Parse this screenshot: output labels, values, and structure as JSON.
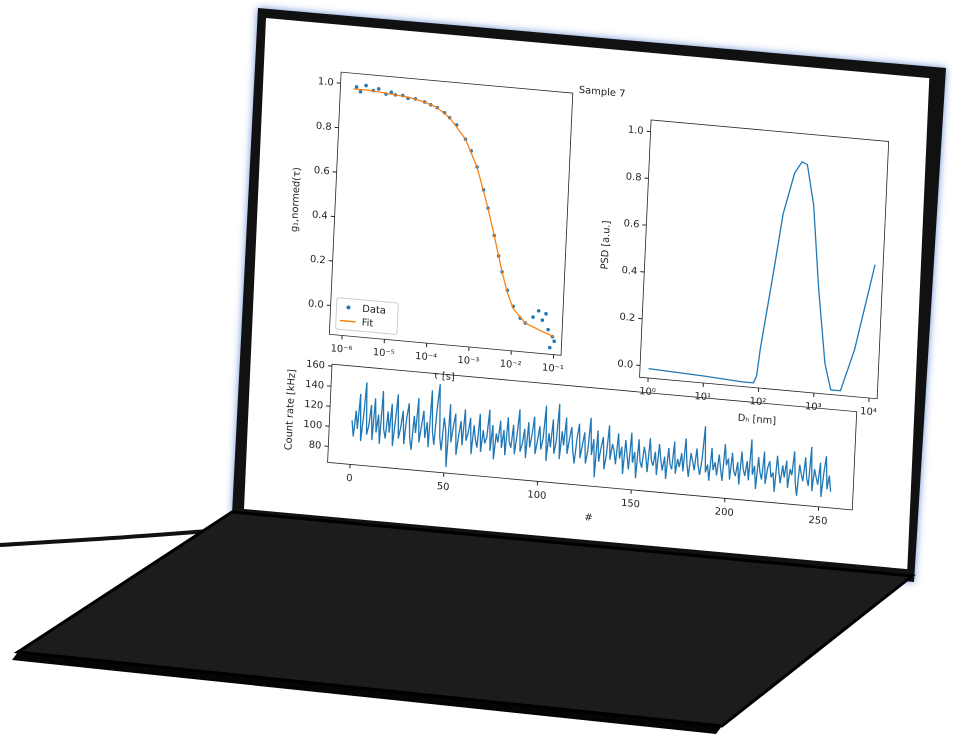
{
  "chart_data": [
    {
      "type": "line",
      "title": "Sample 7",
      "ylabel": "g₁,normed(τ)",
      "xlabel": "τ [s]",
      "xscale": "log",
      "xlim": [
        5e-07,
        0.15
      ],
      "ylim": [
        -0.13,
        1.05
      ],
      "xticks": [
        {
          "value": 1e-06,
          "label": "10⁻⁶"
        },
        {
          "value": 1e-05,
          "label": "10⁻⁵"
        },
        {
          "value": 0.0001,
          "label": "10⁻⁴"
        },
        {
          "value": 0.001,
          "label": "10⁻³"
        },
        {
          "value": 0.01,
          "label": "10⁻²"
        },
        {
          "value": 0.1,
          "label": "10⁻¹"
        }
      ],
      "yticks": [
        {
          "value": 0,
          "label": "0.0"
        },
        0.2,
        0.4,
        0.6,
        0.8,
        {
          "value": 1,
          "label": "1.0"
        }
      ],
      "legend": "lower left",
      "series": [
        {
          "name": "Data",
          "kind": "scatter",
          "color": "#1f77b4",
          "x": [
            1.2e-06,
            1.5e-06,
            2e-06,
            3e-06,
            4e-06,
            6e-06,
            8e-06,
            1e-05,
            1.5e-05,
            2e-05,
            3e-05,
            5e-05,
            7e-05,
            0.0001,
            0.00015,
            0.0002,
            0.0003,
            0.0005,
            0.0007,
            0.001,
            0.0015,
            0.002,
            0.003,
            0.004,
            0.005,
            0.007,
            0.01,
            0.015,
            0.02,
            0.03,
            0.04,
            0.05,
            0.06,
            0.07,
            0.08,
            0.09,
            0.1
          ],
          "values": [
            0.99,
            0.97,
            1.0,
            0.98,
            0.99,
            0.97,
            0.98,
            0.97,
            0.97,
            0.96,
            0.96,
            0.95,
            0.94,
            0.93,
            0.91,
            0.89,
            0.86,
            0.8,
            0.75,
            0.68,
            0.58,
            0.5,
            0.38,
            0.29,
            0.22,
            0.14,
            0.07,
            0.02,
            0.0,
            0.03,
            0.06,
            0.02,
            0.05,
            -0.02,
            -0.1,
            -0.05,
            -0.07
          ]
        },
        {
          "name": "Fit",
          "kind": "line",
          "color": "#ff7f0e",
          "x": [
            1e-06,
            2e-06,
            5e-06,
            1e-05,
            2e-05,
            5e-05,
            0.0001,
            0.0002,
            0.0005,
            0.001,
            0.002,
            0.003,
            0.005,
            0.007,
            0.01,
            0.02,
            0.05,
            0.1
          ],
          "values": [
            0.98,
            0.98,
            0.975,
            0.97,
            0.965,
            0.95,
            0.93,
            0.89,
            0.8,
            0.68,
            0.5,
            0.38,
            0.22,
            0.13,
            0.06,
            0.0,
            -0.03,
            -0.05
          ]
        }
      ]
    },
    {
      "type": "line",
      "ylabel": "PSD [a.u.]",
      "xlabel": "Dₕ [nm]",
      "xscale": "log",
      "xlim": [
        0.7,
        14000
      ],
      "ylim": [
        -0.05,
        1.05
      ],
      "xticks": [
        {
          "value": 1,
          "label": "10⁰"
        },
        {
          "value": 10,
          "label": "10¹"
        },
        {
          "value": 100,
          "label": "10²"
        },
        {
          "value": 1000,
          "label": "10³"
        },
        {
          "value": 10000,
          "label": "10⁴"
        }
      ],
      "yticks": [
        {
          "value": 0,
          "label": "0.0"
        },
        0.2,
        0.4,
        0.6,
        0.8,
        {
          "value": 1,
          "label": "1.0"
        }
      ],
      "series": [
        {
          "kind": "line",
          "color": "#1f77b4",
          "x": [
            1,
            10,
            50,
            80,
            90,
            100,
            150,
            200,
            300,
            400,
            500,
            700,
            1000,
            1500,
            2000,
            2500,
            3000,
            5000,
            10000
          ],
          "values": [
            -0.01,
            -0.02,
            -0.03,
            -0.03,
            0.0,
            0.12,
            0.45,
            0.7,
            0.88,
            0.93,
            0.92,
            0.75,
            0.4,
            0.08,
            -0.03,
            -0.03,
            -0.03,
            0.15,
            0.52
          ]
        }
      ]
    },
    {
      "type": "line",
      "ylabel": "Count rate [kHz]",
      "xlabel": "#",
      "xlim": [
        -12,
        268
      ],
      "ylim": [
        64,
        162
      ],
      "xticks": [
        0,
        50,
        100,
        150,
        200,
        250
      ],
      "yticks": [
        80,
        100,
        120,
        140,
        160
      ],
      "series": [
        {
          "kind": "line",
          "color": "#1f77b4",
          "values": [
            108,
            92,
            118,
            100,
            135,
            88,
            112,
            147,
            95,
            104,
            125,
            90,
            132,
            98,
            116,
            87,
            140,
            102,
            93,
            120,
            99,
            128,
            86,
            110,
            138,
            94,
            105,
            122,
            89,
            115,
            130,
            96,
            84,
            118,
            101,
            136,
            92,
            108,
            124,
            97,
            113,
            88,
            145,
            104,
            91,
            127,
            152,
            99,
            86,
            119,
            107,
            70,
            133,
            95,
            111,
            124,
            83,
            102,
            117,
            93,
            129,
            98,
            106,
            121,
            85,
            114,
            100,
            92,
            126,
            88,
            110,
            97,
            103,
            131,
            90,
            116,
            82,
            108,
            99,
            121,
            94,
            112,
            87,
            125,
            101,
            95,
            118,
            89,
            107,
            134,
            92,
            100,
            115,
            86,
            122,
            97,
            110,
            128,
            91,
            104,
            119,
            96,
            108,
            140,
            85,
            113,
            99,
            127,
            93,
            105,
            143,
            88,
            116,
            102,
            130,
            94,
            109,
            121,
            98,
            85,
            110,
            125,
            91,
            104,
            117,
            86,
            99,
            132,
            95,
            111,
            73,
            120,
            89,
            103,
            114,
            82,
            97,
            126,
            92,
            108,
            101,
            88,
            119,
            94,
            106,
            79,
            113,
            98,
            84,
            121,
            91,
            102,
            76,
            115,
            93,
            87,
            108,
            99,
            83,
            117,
            95,
            90,
            104,
            81,
            112,
            97,
            86,
            100,
            78,
            109,
            93,
            88,
            116,
            84,
            99,
            91,
            105,
            87,
            120,
            95,
            82,
            106,
            98,
            89,
            111,
            94,
            85,
            102,
            134,
            88,
            96,
            80,
            113,
            91,
            99,
            86,
            107,
            93,
            81,
            118,
            97,
            104,
            83,
            110,
            92,
            87,
            101,
            79,
            112,
            95,
            88,
            103,
            84,
            125,
            90,
            99,
            76,
            108,
            93,
            86,
            114,
            82,
            98,
            105,
            89,
            94,
            75,
            111,
            96,
            84,
            102,
            90,
            107,
            80,
            99,
            93,
            117,
            86,
            73,
            104,
            95,
            88,
            112,
            91,
            84,
            123,
            79,
            101,
            93,
            86,
            108,
            74,
            98,
            115,
            82,
            96,
            80
          ]
        }
      ]
    }
  ]
}
